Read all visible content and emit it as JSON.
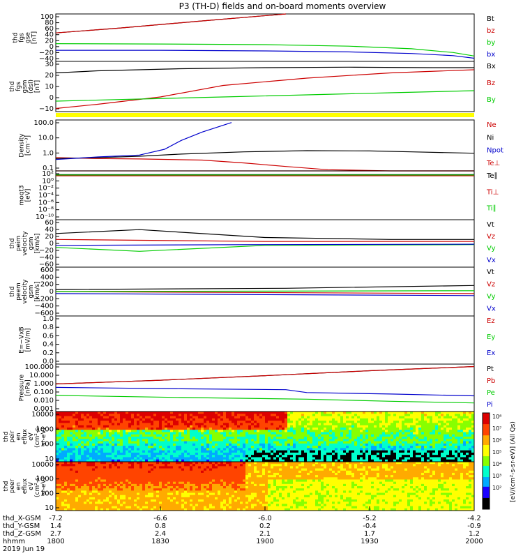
{
  "title": "P3 (TH-D) fields and on-board moments overview",
  "colors": {
    "black": "#000000",
    "red": "#cc0000",
    "green": "#00cc00",
    "blue": "#0000cc",
    "yellow": "#ffff00"
  },
  "chart_data": [
    {
      "id": "fgs_gse",
      "type": "line",
      "ylabel": [
        "thd",
        "fgs",
        "gse",
        "[nT]"
      ],
      "ylim": [
        -50,
        100
      ],
      "yticks": [
        "100",
        "80",
        "60",
        "40",
        "20",
        "0",
        "−20",
        "−40"
      ],
      "series": [
        {
          "name": "Bt",
          "color": "black",
          "x": [
            0,
            0.15,
            0.35,
            0.55
          ],
          "y": [
            40,
            55,
            78,
            100
          ]
        },
        {
          "name": "bz",
          "color": "red",
          "x": [
            0,
            0.15,
            0.35,
            0.55
          ],
          "y": [
            40,
            55,
            78,
            100
          ]
        },
        {
          "name": "by",
          "color": "green",
          "x": [
            0,
            0.25,
            0.5,
            0.7,
            0.85,
            0.95,
            1
          ],
          "y": [
            6,
            5,
            3,
            -2,
            -10,
            -22,
            -33
          ]
        },
        {
          "name": "bx",
          "color": "blue",
          "x": [
            0,
            0.25,
            0.5,
            0.7,
            0.85,
            0.95,
            1
          ],
          "y": [
            -15,
            -15,
            -17,
            -20,
            -25,
            -32,
            -40
          ]
        }
      ]
    },
    {
      "id": "fgs_gsm",
      "type": "line",
      "ylabel": [
        "thd",
        "fgs",
        "gsm",
        "(dsl)",
        "[nT]"
      ],
      "ylim": [
        -15,
        33
      ],
      "yticks": [
        "30",
        "20",
        "10",
        "0",
        "−10"
      ],
      "series": [
        {
          "name": "Bx",
          "color": "black",
          "x": [
            0,
            0.1,
            0.3,
            0.5,
            0.7,
            0.9,
            1
          ],
          "y": [
            22,
            24,
            26,
            27,
            27.5,
            27,
            27
          ]
        },
        {
          "name": "Bz",
          "color": "red",
          "x": [
            0,
            0.1,
            0.25,
            0.4,
            0.6,
            0.8,
            1
          ],
          "y": [
            -12,
            -8,
            -1,
            10,
            17,
            22,
            25
          ]
        },
        {
          "name": "By",
          "color": "green",
          "x": [
            0,
            0.2,
            0.4,
            0.6,
            0.8,
            1
          ],
          "y": [
            -5,
            -3,
            -1,
            1,
            3,
            5
          ]
        }
      ]
    },
    {
      "id": "density",
      "type": "line",
      "log": true,
      "ylabel": [
        "Density",
        "[cm⁻³]"
      ],
      "ylim": [
        0.1,
        300
      ],
      "yticks": [
        "100.0",
        "10.0",
        "1.0",
        "0.1"
      ],
      "series": [
        {
          "name": "Ne",
          "color": "red",
          "x": [
            0,
            0.1,
            0.2,
            0.35,
            0.45,
            0.55,
            0.65,
            0.8,
            1
          ],
          "y": [
            0.8,
            0.7,
            0.65,
            0.55,
            0.35,
            0.2,
            0.12,
            0.1,
            0.1
          ]
        },
        {
          "name": "Ni",
          "color": "black",
          "x": [
            0,
            0.1,
            0.2,
            0.3,
            0.45,
            0.6,
            0.75,
            0.85,
            1
          ],
          "y": [
            0.7,
            0.8,
            1,
            1.4,
            2,
            2.4,
            2.3,
            2,
            1.6
          ]
        },
        {
          "name": "Npot",
          "color": "blue",
          "x": [
            0,
            0.1,
            0.2,
            0.26,
            0.3,
            0.35,
            0.42
          ],
          "y": [
            0.6,
            0.9,
            1.2,
            3,
            12,
            45,
            200
          ]
        },
        {
          "name": "Te⊥",
          "color": "red",
          "x": [
            0,
            1
          ],
          "y": [
            0.1,
            0.1
          ]
        }
      ]
    },
    {
      "id": "temperature",
      "type": "line",
      "log": true,
      "ylabel": [
        "moqt3",
        "[eV]"
      ],
      "ylim": [
        1e-10,
        1000.0
      ],
      "yticks": [
        "10²",
        "10⁰",
        "10⁻²",
        "10⁻⁴",
        "10⁻⁶",
        "10⁻⁸",
        "10⁻¹⁰"
      ],
      "series": [
        {
          "name": "Te∥",
          "color": "black",
          "x": [
            0,
            1
          ],
          "y": [
            100,
            100
          ]
        },
        {
          "name": "Ti⊥",
          "color": "red",
          "x": [
            0,
            1
          ],
          "y": [
            50,
            50
          ]
        },
        {
          "name": "Ti∥",
          "color": "green",
          "x": [
            0,
            1
          ],
          "y": [
            80,
            80
          ]
        }
      ]
    },
    {
      "id": "peim_velocity",
      "type": "line",
      "ylabel": [
        "thd",
        "peim",
        "velocity",
        "gsm",
        "[km/s]"
      ],
      "ylim": [
        -60,
        60
      ],
      "yticks": [
        "60",
        "40",
        "20",
        "0",
        "−20",
        "−40",
        "−60"
      ],
      "series": [
        {
          "name": "Vt",
          "color": "black",
          "x": [
            0,
            0.2,
            0.5,
            0.8,
            1
          ],
          "y": [
            25,
            35,
            15,
            10,
            10
          ]
        },
        {
          "name": "Vz",
          "color": "red",
          "x": [
            0,
            0.5,
            1
          ],
          "y": [
            10,
            5,
            5
          ]
        },
        {
          "name": "Vy",
          "color": "green",
          "x": [
            0,
            0.2,
            0.5,
            1
          ],
          "y": [
            -10,
            -20,
            -5,
            -3
          ]
        },
        {
          "name": "Vx",
          "color": "blue",
          "x": [
            0,
            0.5,
            1
          ],
          "y": [
            -5,
            -3,
            -2
          ]
        }
      ]
    },
    {
      "id": "peem_velocity",
      "type": "line",
      "ylabel": [
        "thd",
        "peem",
        "velocity",
        "gsm",
        "[km/s]"
      ],
      "ylim": [
        -600,
        600
      ],
      "yticks": [
        "600",
        "400",
        "200",
        "0",
        "−200",
        "−400",
        "−600"
      ],
      "series": [
        {
          "name": "Vt",
          "color": "black",
          "x": [
            0,
            0.55,
            1
          ],
          "y": [
            50,
            80,
            150
          ]
        },
        {
          "name": "Vz",
          "color": "red",
          "x": [
            0,
            1
          ],
          "y": [
            0,
            -50
          ]
        },
        {
          "name": "Vy",
          "color": "green",
          "x": [
            0,
            1
          ],
          "y": [
            0,
            20
          ]
        },
        {
          "name": "Vx",
          "color": "blue",
          "x": [
            0,
            1
          ],
          "y": [
            -50,
            -100
          ]
        }
      ]
    },
    {
      "id": "efield",
      "type": "line",
      "ylabel": [
        "E=−VxB",
        "[mV/m]"
      ],
      "ylim": [
        0,
        1
      ],
      "yticks": [
        "1.0",
        "0.8",
        "0.6",
        "0.4",
        "0.2",
        "0.0"
      ],
      "series": [
        {
          "name": "Ez",
          "color": "red",
          "x": [],
          "y": []
        },
        {
          "name": "Ey",
          "color": "green",
          "x": [],
          "y": []
        },
        {
          "name": "Ex",
          "color": "blue",
          "x": [],
          "y": []
        }
      ]
    },
    {
      "id": "pressure",
      "type": "line",
      "log": true,
      "ylabel": [
        "Pressure",
        "[nPa]"
      ],
      "ylim": [
        0.001,
        100
      ],
      "yticks": [
        "100.000",
        "10.000",
        "1.000",
        "0.100",
        "0.010",
        "0.001"
      ],
      "series": [
        {
          "name": "Pt",
          "color": "black",
          "x": [
            0,
            0.25,
            0.5,
            0.75,
            1
          ],
          "y": [
            0.8,
            2,
            6,
            20,
            55
          ]
        },
        {
          "name": "Pb",
          "color": "red",
          "x": [
            0,
            0.25,
            0.5,
            0.75,
            1
          ],
          "y": [
            0.8,
            2,
            6,
            20,
            55
          ]
        },
        {
          "name": "Pe",
          "color": "green",
          "x": [
            0,
            0.3,
            0.6,
            0.8,
            1
          ],
          "y": [
            0.05,
            0.03,
            0.02,
            0.012,
            0.008
          ]
        },
        {
          "name": "Pi",
          "color": "blue",
          "x": [
            0,
            0.3,
            0.55,
            0.6,
            0.8,
            1
          ],
          "y": [
            0.35,
            0.25,
            0.2,
            0.1,
            0.07,
            0.045
          ]
        }
      ]
    },
    {
      "id": "peir_spec",
      "type": "heatmap",
      "ylabel": [
        "thd",
        "peir",
        "en",
        "eflux",
        "eV",
        "(cm²-s-",
        "sr-eV)"
      ],
      "yticks": [
        "10000",
        "1000",
        "100",
        "10"
      ]
    },
    {
      "id": "peer_spec",
      "type": "heatmap",
      "ylabel": [
        "thd",
        "peer",
        "en",
        "eflux",
        "eV",
        "(cm²-s-",
        "sr-eV)"
      ],
      "yticks": [
        "10000",
        "1000",
        "100",
        "10"
      ]
    }
  ],
  "colorbar": {
    "label": "[eV/(cm²-s-sr-eV)] (All Qs)",
    "ticks": [
      "10⁸",
      "10⁷",
      "10⁶",
      "10⁵",
      "10⁴",
      "10³",
      "10²"
    ]
  },
  "xaxis": {
    "rows": [
      {
        "label": "thd_X-GSM",
        "values": [
          "-7.2",
          "-6.6",
          "-6.0",
          "-5.2",
          "-4.2"
        ]
      },
      {
        "label": "thd_Y-GSM",
        "values": [
          "1.4",
          "0.8",
          "0.2",
          "-0.4",
          "-0.9"
        ]
      },
      {
        "label": "thd_Z-GSM",
        "values": [
          "2.7",
          "2.4",
          "2.1",
          "1.7",
          "1.2"
        ]
      },
      {
        "label": "hhmm",
        "values": [
          "1800",
          "1830",
          "1900",
          "1930",
          "2000"
        ]
      }
    ],
    "date": "2019 Jun 19"
  }
}
